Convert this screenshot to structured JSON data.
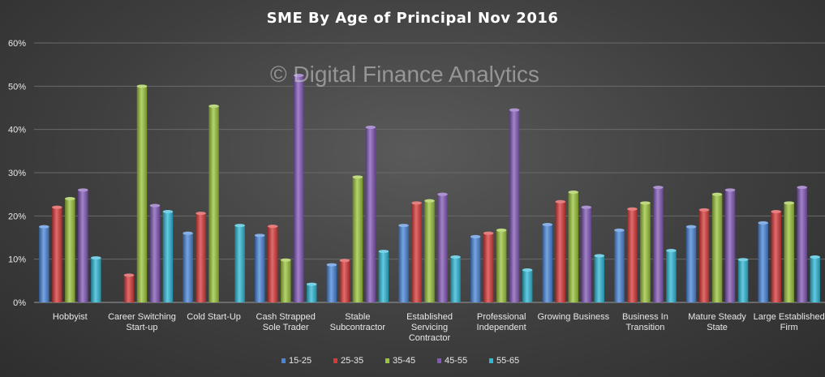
{
  "chart_data": {
    "type": "bar",
    "title": "SME By Age of Principal  Nov 2016",
    "watermark": "© Digital Finance Analytics",
    "ylim": [
      0,
      60
    ],
    "yticks": [
      "0%",
      "10%",
      "20%",
      "30%",
      "40%",
      "50%",
      "60%"
    ],
    "ytick_values": [
      0,
      10,
      20,
      30,
      40,
      50,
      60
    ],
    "categories": [
      [
        "Hobbyist"
      ],
      [
        "Career Switching",
        "Start-up"
      ],
      [
        "Cold Start-Up"
      ],
      [
        "Cash Strapped",
        "Sole Trader"
      ],
      [
        "Stable",
        "Subcontractor"
      ],
      [
        "Established",
        "Servicing",
        "Contractor"
      ],
      [
        "Professional",
        "Independent"
      ],
      [
        "Growing Business"
      ],
      [
        "Business In",
        "Transition"
      ],
      [
        "Mature Steady",
        "State"
      ],
      [
        "Large Established",
        "Firm"
      ]
    ],
    "series": [
      {
        "name": "15-25",
        "color": "#4a86d8",
        "values": [
          17.5,
          0,
          16,
          15.5,
          8.7,
          17.8,
          15.2,
          18,
          16.7,
          17.5,
          18.4
        ]
      },
      {
        "name": "25-35",
        "color": "#d83a3a",
        "values": [
          22,
          6.3,
          20.6,
          17.6,
          9.7,
          23,
          16,
          23.3,
          21.6,
          21.4,
          21
        ]
      },
      {
        "name": "35-45",
        "color": "#9bc43c",
        "values": [
          24,
          50,
          45.4,
          9.8,
          29,
          23.5,
          16.7,
          25.5,
          23,
          25,
          23
        ]
      },
      {
        "name": "45-55",
        "color": "#8359b8",
        "values": [
          26,
          22.4,
          0,
          52.5,
          40.5,
          25,
          44.5,
          22,
          26.6,
          26,
          26.6
        ]
      },
      {
        "name": "55-65",
        "color": "#2fb8d6",
        "values": [
          10.3,
          21,
          17.8,
          4.2,
          11.8,
          10.5,
          7.5,
          10.8,
          12,
          9.9,
          10.5
        ]
      }
    ],
    "legend_placement": "bottom",
    "grid": true
  }
}
